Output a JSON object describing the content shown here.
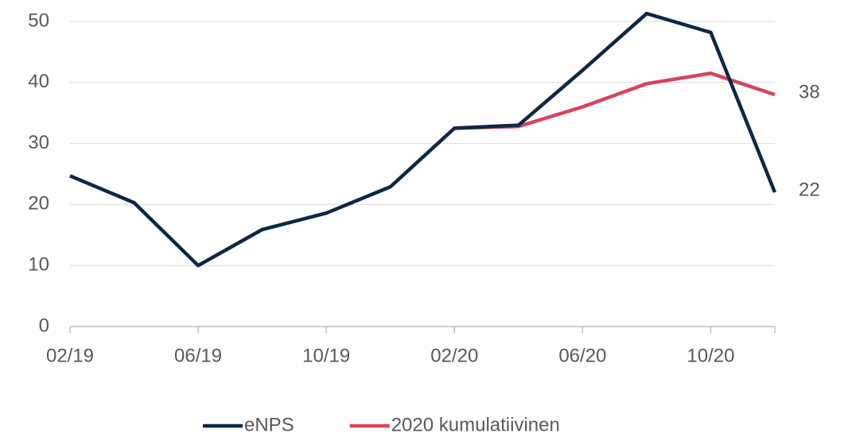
{
  "chart_data": {
    "type": "line",
    "categories": [
      "02/19",
      null,
      "06/19",
      null,
      "10/19",
      null,
      "02/20",
      null,
      "06/20",
      null,
      "10/20",
      null
    ],
    "series": [
      {
        "name": "eNPS",
        "color": "#0c2748",
        "values": [
          24.7,
          20.3,
          10,
          15.9,
          18.6,
          22.9,
          32.5,
          33,
          42,
          51.3,
          48.2,
          22
        ]
      },
      {
        "name": "2020 kumulatiivinen",
        "color": "#d8435c",
        "values": [
          null,
          null,
          null,
          null,
          null,
          null,
          32.5,
          32.8,
          36,
          39.8,
          41.5,
          38
        ]
      }
    ],
    "ylim": [
      0,
      50
    ],
    "yticks": [
      0,
      10,
      20,
      30,
      40,
      50
    ],
    "grid": true,
    "legend": "bottom"
  }
}
